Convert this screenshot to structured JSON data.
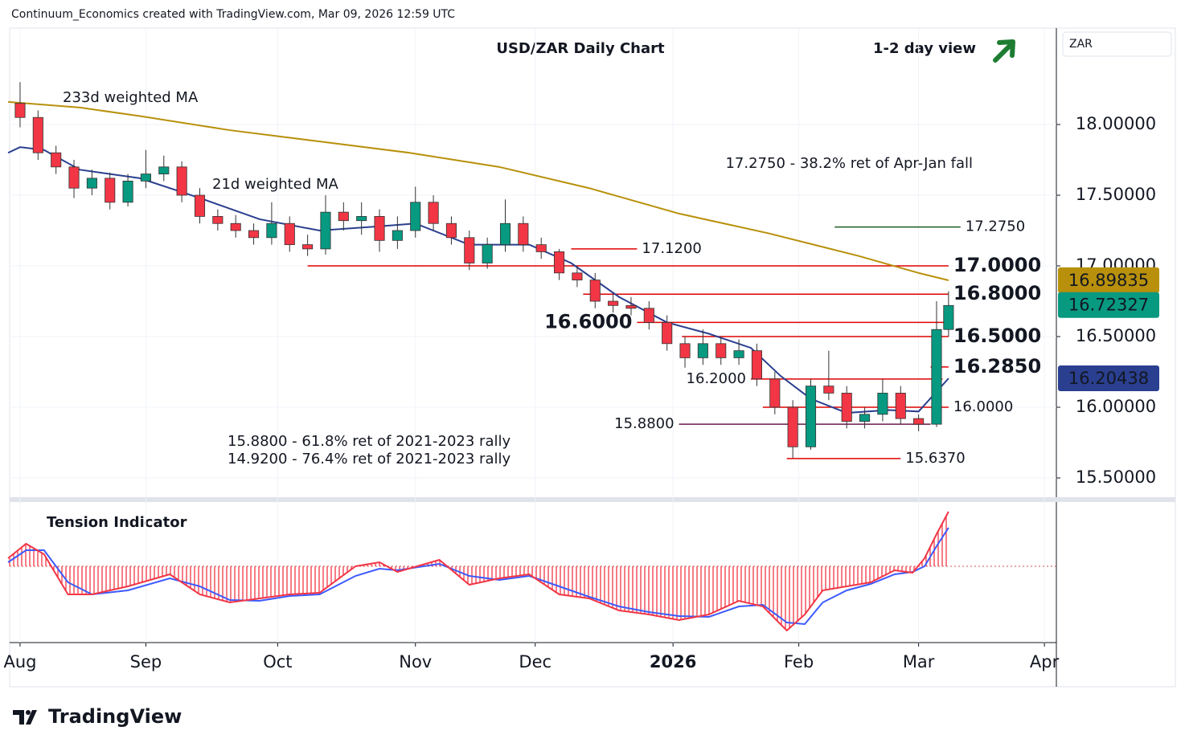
{
  "header": "Continuum_Economics created with TradingView.com, Mar 09, 2026 12:59 UTC",
  "footer": {
    "logo": "TradingView"
  },
  "chart_data": {
    "type": "candlestick",
    "title": "USD/ZAR Daily Chart",
    "subtitle": "1-2 day view",
    "currency": "ZAR",
    "xlim": [
      -1.74,
      173
    ],
    "xticks": [
      {
        "value": 0,
        "label": "Aug"
      },
      {
        "value": 21,
        "label": "Sep"
      },
      {
        "value": 43,
        "label": "Oct"
      },
      {
        "value": 66,
        "label": "Nov"
      },
      {
        "value": 86,
        "label": "Dec"
      },
      {
        "value": 109,
        "label": "2026"
      },
      {
        "value": 130,
        "label": "Feb"
      },
      {
        "value": 150,
        "label": "Mar"
      },
      {
        "value": 171,
        "label": "Apr"
      }
    ],
    "ylim": [
      15.358,
      18.682
    ],
    "yticks": [
      {
        "value": 15.5,
        "label": "15.50000"
      },
      {
        "value": 16,
        "label": "16.00000"
      },
      {
        "value": 16.5,
        "label": "16.50000"
      },
      {
        "value": 17,
        "label": "17.00000"
      },
      {
        "value": 17.5,
        "label": "17.50000"
      },
      {
        "value": 18,
        "label": "18.00000"
      }
    ],
    "up_color": "#089981",
    "down_color": "#f23645",
    "candles": {
      "x": [
        0,
        3,
        6,
        9,
        12,
        15,
        18,
        21,
        24,
        27,
        30,
        33,
        36,
        39,
        42,
        45,
        48,
        51,
        54,
        57,
        60,
        63,
        66,
        69,
        72,
        75,
        78,
        81,
        84,
        87,
        90,
        93,
        96,
        99,
        102,
        105,
        108,
        111,
        114,
        117,
        120,
        123,
        126,
        129,
        132,
        135,
        138,
        141,
        144,
        147,
        150,
        153,
        155
      ],
      "open": [
        18.15,
        18.05,
        17.8,
        17.7,
        17.55,
        17.62,
        17.45,
        17.6,
        17.65,
        17.7,
        17.5,
        17.35,
        17.3,
        17.25,
        17.2,
        17.3,
        17.15,
        17.12,
        17.38,
        17.32,
        17.35,
        17.18,
        17.25,
        17.45,
        17.3,
        17.2,
        17.02,
        17.15,
        17.3,
        17.15,
        17.1,
        16.95,
        16.9,
        16.75,
        16.72,
        16.7,
        16.6,
        16.45,
        16.35,
        16.45,
        16.35,
        16.4,
        16.2,
        16.0,
        15.72,
        16.15,
        16.1,
        15.9,
        15.95,
        16.1,
        15.92,
        15.88,
        16.55
      ],
      "high": [
        18.3,
        18.1,
        17.85,
        17.75,
        17.68,
        17.66,
        17.65,
        17.82,
        17.78,
        17.74,
        17.55,
        17.4,
        17.36,
        17.3,
        17.45,
        17.35,
        17.22,
        17.5,
        17.45,
        17.45,
        17.4,
        17.35,
        17.56,
        17.5,
        17.35,
        17.25,
        17.2,
        17.47,
        17.35,
        17.2,
        17.12,
        17.0,
        16.95,
        16.8,
        16.78,
        16.75,
        16.65,
        16.5,
        16.55,
        16.5,
        16.48,
        16.45,
        16.25,
        16.05,
        16.2,
        16.4,
        16.15,
        16.0,
        16.2,
        16.15,
        15.95,
        16.75,
        16.82
      ],
      "low": [
        17.98,
        17.75,
        17.65,
        17.48,
        17.5,
        17.4,
        17.42,
        17.55,
        17.6,
        17.45,
        17.3,
        17.25,
        17.2,
        17.15,
        17.15,
        17.1,
        17.07,
        17.08,
        17.25,
        17.22,
        17.1,
        17.12,
        17.2,
        17.25,
        17.15,
        16.97,
        16.98,
        17.1,
        17.1,
        17.05,
        16.9,
        16.85,
        16.7,
        16.67,
        16.65,
        16.55,
        16.4,
        16.28,
        16.3,
        16.3,
        16.3,
        16.15,
        15.95,
        15.64,
        15.7,
        16.05,
        15.85,
        15.85,
        15.9,
        15.88,
        15.83,
        15.86,
        16.5
      ],
      "close": [
        18.05,
        17.8,
        17.7,
        17.55,
        17.62,
        17.45,
        17.6,
        17.65,
        17.7,
        17.5,
        17.35,
        17.3,
        17.25,
        17.2,
        17.3,
        17.15,
        17.12,
        17.38,
        17.32,
        17.35,
        17.18,
        17.25,
        17.45,
        17.3,
        17.2,
        17.02,
        17.15,
        17.3,
        17.15,
        17.1,
        16.95,
        16.9,
        16.75,
        16.72,
        16.7,
        16.6,
        16.45,
        16.35,
        16.45,
        16.35,
        16.4,
        16.2,
        16.0,
        15.72,
        16.15,
        16.1,
        15.9,
        15.95,
        16.1,
        15.92,
        15.88,
        16.55,
        16.72
      ]
    },
    "series": [
      {
        "name": "233d weighted MA",
        "color": "#b8900b",
        "x": [
          -2,
          10,
          20,
          35,
          50,
          65,
          80,
          95,
          110,
          125,
          140,
          150,
          155
        ],
        "values": [
          18.16,
          18.12,
          18.06,
          17.96,
          17.88,
          17.8,
          17.7,
          17.55,
          17.37,
          17.23,
          17.07,
          16.95,
          16.898
        ]
      },
      {
        "name": "21d weighted MA",
        "color": "#2a3f8f",
        "x": [
          -2,
          0,
          4,
          10,
          20,
          30,
          40,
          50,
          60,
          66,
          75,
          85,
          92,
          100,
          108,
          115,
          122,
          127,
          132,
          138,
          145,
          150,
          155
        ],
        "values": [
          17.8,
          17.84,
          17.82,
          17.68,
          17.62,
          17.48,
          17.33,
          17.25,
          17.28,
          17.3,
          17.15,
          17.15,
          17.02,
          16.78,
          16.6,
          16.52,
          16.42,
          16.22,
          16.06,
          15.96,
          15.98,
          15.97,
          16.204
        ]
      }
    ],
    "price_tags": [
      {
        "value": 16.89835,
        "color": "#b8900b"
      },
      {
        "value": 16.72327,
        "color": "#089981"
      },
      {
        "value": 16.20438,
        "color": "#2a3f8f"
      }
    ],
    "levels": [
      {
        "value": 17.275,
        "label": "17.2750",
        "color": "#1b5e20",
        "x_from": 136,
        "x_to": 157,
        "label_side": "right",
        "label_size": "small"
      },
      {
        "value": 17.12,
        "label": "17.1200",
        "color": "#e00000",
        "x_from": 92,
        "x_to": 103,
        "label_side": "right",
        "label_size": "small"
      },
      {
        "value": 17.0,
        "label": "17.0000",
        "color": "#e00000",
        "x_from": 48,
        "x_to": 155,
        "label_side": "right",
        "label_size": "large"
      },
      {
        "value": 16.8,
        "label": "16.8000",
        "color": "#e00000",
        "x_from": 94,
        "x_to": 155,
        "label_side": "right",
        "label_size": "large"
      },
      {
        "value": 16.6,
        "label": "16.6000",
        "color": "#e00000",
        "x_from": 103,
        "x_to": 155,
        "label_side": "left",
        "label_size": "large"
      },
      {
        "value": 16.5,
        "label": "16.5000",
        "color": "#e00000",
        "x_from": 110.5,
        "x_to": 155,
        "label_side": "right",
        "label_size": "large"
      },
      {
        "value": 16.285,
        "label": "16.2850",
        "color": "#e00000",
        "x_from": 152,
        "x_to": 155,
        "label_side": "right",
        "label_size": "large"
      },
      {
        "value": 16.2,
        "label": "16.2000",
        "color": "#e00000",
        "x_from": 122,
        "x_to": 154,
        "label_side": "left",
        "label_size": "small"
      },
      {
        "value": 16.0,
        "label": "16.0000",
        "color": "#e00000",
        "x_from": 124,
        "x_to": 155,
        "label_side": "right",
        "label_size": "small"
      },
      {
        "value": 15.88,
        "label": "15.8800",
        "color": "#6a1b4d",
        "x_from": 110,
        "x_to": 152,
        "label_side": "left",
        "label_size": "small"
      },
      {
        "value": 15.637,
        "label": "15.6370",
        "color": "#e00000",
        "x_from": 128,
        "x_to": 147,
        "label_side": "right",
        "label_size": "small"
      }
    ],
    "annotations": [
      {
        "text": "17.2750 - 38.2% ret of Apr-Jan fall",
        "color": "#2e6b1f"
      },
      {
        "text": "15.8800 - 61.8% ret of 2021-2023 rally",
        "color": "#7b1f5a"
      },
      {
        "text": "14.9200 - 76.4% ret of 2021-2023 rally",
        "color": "#7b1f5a"
      }
    ],
    "tension": {
      "title": "Tension Indicator",
      "ylim": [
        -0.95,
        0.75
      ],
      "x": [
        -2,
        1,
        4,
        8,
        12,
        18,
        25,
        30,
        35,
        40,
        45,
        50,
        56,
        60,
        63,
        70,
        75,
        80,
        85,
        90,
        95,
        100,
        105,
        110,
        115,
        120,
        124,
        128,
        131,
        134,
        138,
        142,
        146,
        149,
        151,
        153,
        155
      ],
      "fast": {
        "color": "#f23645",
        "values": [
          0.1,
          0.28,
          0.15,
          -0.35,
          -0.35,
          -0.25,
          -0.1,
          -0.35,
          -0.45,
          -0.4,
          -0.35,
          -0.33,
          0,
          0.05,
          -0.07,
          0.08,
          -0.23,
          -0.15,
          -0.1,
          -0.35,
          -0.4,
          -0.55,
          -0.6,
          -0.67,
          -0.6,
          -0.43,
          -0.5,
          -0.8,
          -0.6,
          -0.3,
          -0.25,
          -0.2,
          -0.05,
          -0.08,
          0.1,
          0.4,
          0.68
        ]
      },
      "slow": {
        "color": "#3d5afe",
        "values": [
          0.05,
          0.2,
          0.2,
          -0.2,
          -0.35,
          -0.3,
          -0.15,
          -0.25,
          -0.42,
          -0.43,
          -0.37,
          -0.35,
          -0.12,
          -0.03,
          -0.05,
          0.03,
          -0.12,
          -0.17,
          -0.12,
          -0.25,
          -0.38,
          -0.5,
          -0.57,
          -0.62,
          -0.63,
          -0.5,
          -0.48,
          -0.7,
          -0.72,
          -0.45,
          -0.3,
          -0.22,
          -0.1,
          -0.07,
          0.0,
          0.25,
          0.48
        ]
      }
    }
  }
}
